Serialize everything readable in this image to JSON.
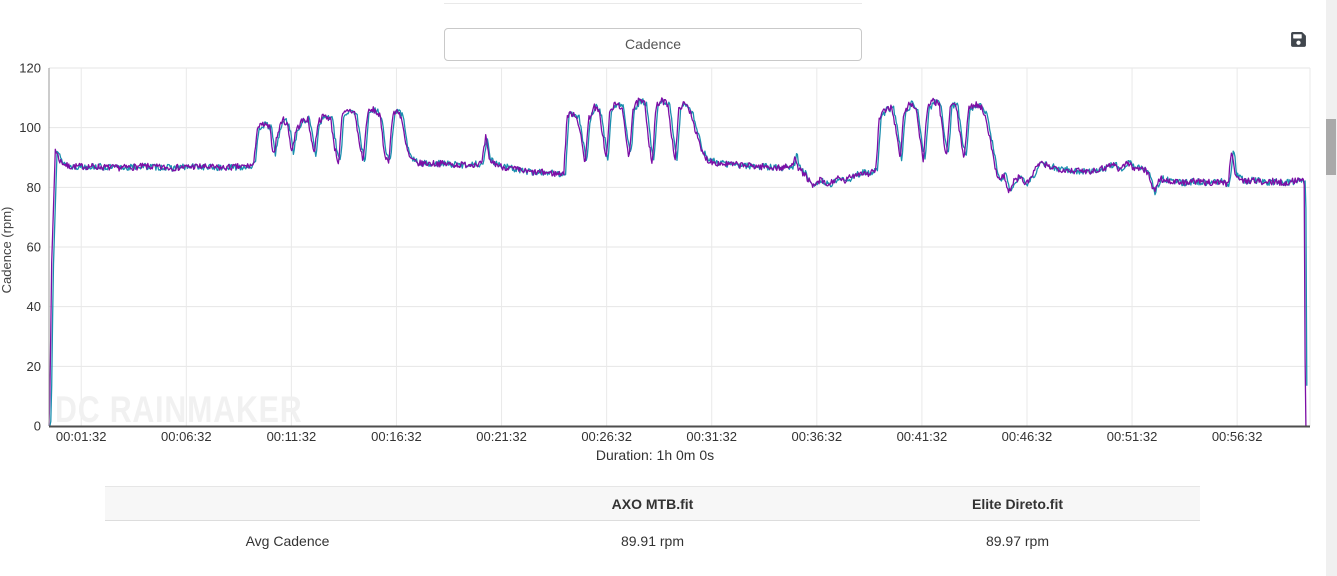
{
  "page": {
    "metric_button_label": "Cadence",
    "watermark": "DC RAINMAKER",
    "duration_label": "Duration: 1h 0m 0s"
  },
  "chart_data": {
    "type": "line",
    "title": "Cadence",
    "ylabel": "Cadence (rpm)",
    "xlabel": "Duration: 1h 0m 0s",
    "ylim": [
      0,
      120
    ],
    "yticks": [
      0,
      20,
      40,
      60,
      80,
      100,
      120
    ],
    "grid": true,
    "legend_position": "none",
    "duration_min": 60,
    "xticks": [
      {
        "t_min": 1.5333,
        "label": "00:01:32"
      },
      {
        "t_min": 6.5333,
        "label": "00:06:32"
      },
      {
        "t_min": 11.5333,
        "label": "00:11:32"
      },
      {
        "t_min": 16.5333,
        "label": "00:16:32"
      },
      {
        "t_min": 21.5333,
        "label": "00:21:32"
      },
      {
        "t_min": 26.5333,
        "label": "00:26:32"
      },
      {
        "t_min": 31.5333,
        "label": "00:31:32"
      },
      {
        "t_min": 36.5333,
        "label": "00:36:32"
      },
      {
        "t_min": 41.5333,
        "label": "00:41:32"
      },
      {
        "t_min": 46.5333,
        "label": "00:46:32"
      },
      {
        "t_min": 51.5333,
        "label": "00:51:32"
      },
      {
        "t_min": 56.5333,
        "label": "00:56:32"
      }
    ],
    "series": [
      {
        "name": "AXO MTB.fit",
        "color": "#7d0ea6",
        "avg": "89.91 rpm",
        "time_offset_min": 0,
        "noise_rpm": 1.1,
        "seed": 7,
        "z": 2
      },
      {
        "name": "Elite Direto.fit",
        "color": "#1b8fae",
        "avg": "89.97 rpm",
        "time_offset_min": 0.08,
        "noise_rpm": 1.1,
        "seed": 13,
        "z": 1
      }
    ],
    "profile_rpm_keypoints": [
      [
        0,
        0
      ],
      [
        0.05,
        14
      ],
      [
        0.12,
        52
      ],
      [
        0.3,
        93
      ],
      [
        0.5,
        89
      ],
      [
        0.9,
        87
      ],
      [
        2,
        87
      ],
      [
        3.2,
        86.5
      ],
      [
        4.5,
        87
      ],
      [
        5.8,
        86.5
      ],
      [
        7,
        87
      ],
      [
        8.2,
        86.5
      ],
      [
        9.3,
        87
      ],
      [
        9.75,
        87.5
      ],
      [
        9.9,
        100
      ],
      [
        10.2,
        101
      ],
      [
        10.5,
        100
      ],
      [
        10.68,
        91
      ],
      [
        10.85,
        97
      ],
      [
        11.1,
        103
      ],
      [
        11.35,
        101
      ],
      [
        11.55,
        92
      ],
      [
        11.75,
        99
      ],
      [
        12,
        102
      ],
      [
        12.3,
        103
      ],
      [
        12.5,
        96
      ],
      [
        12.62,
        91
      ],
      [
        12.8,
        102
      ],
      [
        13.1,
        104
      ],
      [
        13.4,
        103
      ],
      [
        13.6,
        93
      ],
      [
        13.78,
        88
      ],
      [
        13.95,
        104
      ],
      [
        14.25,
        106
      ],
      [
        14.55,
        105
      ],
      [
        14.78,
        94
      ],
      [
        14.95,
        89
      ],
      [
        15.15,
        105
      ],
      [
        15.45,
        106
      ],
      [
        15.75,
        104
      ],
      [
        15.95,
        92
      ],
      [
        16.15,
        88
      ],
      [
        16.35,
        104
      ],
      [
        16.6,
        106
      ],
      [
        16.78,
        103
      ],
      [
        16.95,
        95
      ],
      [
        17.15,
        90
      ],
      [
        17.5,
        88
      ],
      [
        18.5,
        88
      ],
      [
        19.5,
        87.5
      ],
      [
        20.6,
        88
      ],
      [
        20.78,
        97
      ],
      [
        20.95,
        89
      ],
      [
        21.5,
        87
      ],
      [
        22.2,
        86
      ],
      [
        22.9,
        85
      ],
      [
        23.6,
        85
      ],
      [
        24.2,
        84.5
      ],
      [
        24.5,
        85
      ],
      [
        24.65,
        104
      ],
      [
        24.95,
        105
      ],
      [
        25.15,
        103
      ],
      [
        25.35,
        95
      ],
      [
        25.5,
        88
      ],
      [
        25.68,
        103
      ],
      [
        25.95,
        107
      ],
      [
        26.18,
        105
      ],
      [
        26.38,
        96
      ],
      [
        26.52,
        89
      ],
      [
        26.68,
        105
      ],
      [
        26.95,
        108
      ],
      [
        27.25,
        107
      ],
      [
        27.45,
        97
      ],
      [
        27.6,
        90
      ],
      [
        27.78,
        106
      ],
      [
        28.05,
        109
      ],
      [
        28.35,
        108
      ],
      [
        28.55,
        95
      ],
      [
        28.7,
        88
      ],
      [
        28.88,
        107
      ],
      [
        29.15,
        109
      ],
      [
        29.45,
        108
      ],
      [
        29.65,
        96
      ],
      [
        29.8,
        89
      ],
      [
        29.98,
        107
      ],
      [
        30.28,
        108
      ],
      [
        30.55,
        105
      ],
      [
        30.8,
        98
      ],
      [
        31.05,
        92
      ],
      [
        31.35,
        89
      ],
      [
        31.9,
        88
      ],
      [
        32.8,
        87.5
      ],
      [
        33.8,
        87
      ],
      [
        34.8,
        86.5
      ],
      [
        35.35,
        87
      ],
      [
        35.5,
        91
      ],
      [
        35.68,
        86
      ],
      [
        36.0,
        84
      ],
      [
        36.35,
        80
      ],
      [
        36.7,
        82.5
      ],
      [
        37.05,
        80.5
      ],
      [
        37.45,
        83
      ],
      [
        37.85,
        82
      ],
      [
        38.25,
        84
      ],
      [
        38.65,
        85
      ],
      [
        39.0,
        84.5
      ],
      [
        39.35,
        86
      ],
      [
        39.5,
        103
      ],
      [
        39.8,
        106
      ],
      [
        40.1,
        107
      ],
      [
        40.35,
        97
      ],
      [
        40.5,
        89
      ],
      [
        40.68,
        105
      ],
      [
        40.95,
        108
      ],
      [
        41.25,
        107
      ],
      [
        41.45,
        96
      ],
      [
        41.6,
        89
      ],
      [
        41.78,
        106
      ],
      [
        42.05,
        109
      ],
      [
        42.35,
        108
      ],
      [
        42.55,
        97
      ],
      [
        42.7,
        90
      ],
      [
        42.88,
        107
      ],
      [
        43.15,
        108
      ],
      [
        43.38,
        96
      ],
      [
        43.55,
        90
      ],
      [
        43.75,
        106
      ],
      [
        44.05,
        108
      ],
      [
        44.35,
        107
      ],
      [
        44.6,
        103
      ],
      [
        44.8,
        95
      ],
      [
        45.0,
        87
      ],
      [
        45.2,
        83
      ],
      [
        45.45,
        84
      ],
      [
        45.65,
        78
      ],
      [
        45.9,
        82
      ],
      [
        46.2,
        83.5
      ],
      [
        46.5,
        81
      ],
      [
        46.78,
        84
      ],
      [
        47.1,
        88
      ],
      [
        47.6,
        87
      ],
      [
        48.2,
        86
      ],
      [
        48.9,
        85.5
      ],
      [
        49.6,
        85.5
      ],
      [
        50.2,
        86.5
      ],
      [
        50.6,
        88
      ],
      [
        50.95,
        86
      ],
      [
        51.3,
        88.5
      ],
      [
        51.65,
        86
      ],
      [
        52.0,
        87
      ],
      [
        52.35,
        84
      ],
      [
        52.55,
        78.5
      ],
      [
        52.85,
        83
      ],
      [
        53.3,
        82
      ],
      [
        53.9,
        81.5
      ],
      [
        54.5,
        82
      ],
      [
        55.1,
        81.5
      ],
      [
        55.7,
        82
      ],
      [
        56.1,
        81
      ],
      [
        56.28,
        93
      ],
      [
        56.45,
        84
      ],
      [
        56.8,
        82
      ],
      [
        57.3,
        82.5
      ],
      [
        57.8,
        81.5
      ],
      [
        58.3,
        82
      ],
      [
        58.8,
        81.5
      ],
      [
        59.2,
        82
      ],
      [
        59.45,
        83
      ],
      [
        59.65,
        82
      ],
      [
        59.72,
        83
      ],
      [
        59.78,
        0
      ]
    ],
    "render_points": 1400,
    "render_tmax_min": 59.85
  },
  "table": {
    "headers": [
      "",
      "AXO MTB.fit",
      "Elite Direto.fit"
    ],
    "rows": [
      {
        "label": "Avg Cadence",
        "values": [
          "89.91 rpm",
          "89.97 rpm"
        ]
      }
    ]
  }
}
